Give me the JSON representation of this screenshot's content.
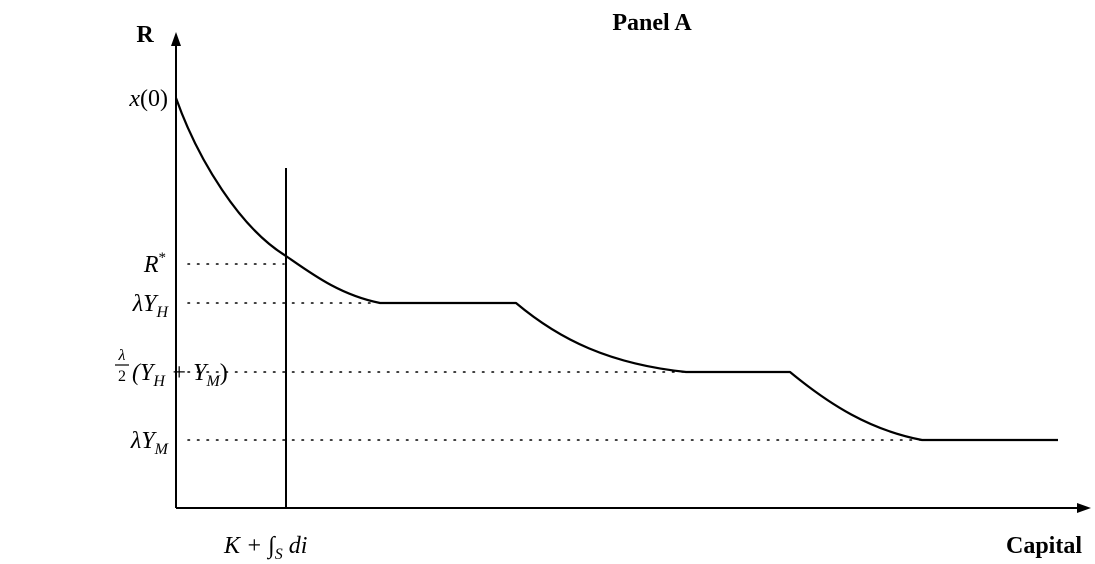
{
  "panel_title": "Panel A",
  "axes": {
    "y_label": "R",
    "x_label": "Capital",
    "x_tick": {
      "prefix": "K + ∫",
      "sub": "S",
      "suffix": " di"
    }
  },
  "y_ticks": {
    "x0": {
      "text": "x(0)"
    },
    "r_star": {
      "base": "R",
      "sup": "*"
    },
    "lambda_yh": {
      "base": "λY",
      "sub": "H"
    },
    "half": {
      "frac_num": "λ",
      "frac_den": "2",
      "open": "(Y",
      "sub1": "H",
      "mid": " + Y",
      "sub2": "M",
      "close": ")"
    },
    "lambda_ym": {
      "base": "λY",
      "sub": "M"
    }
  },
  "colors": {
    "ink": "#000000"
  }
}
